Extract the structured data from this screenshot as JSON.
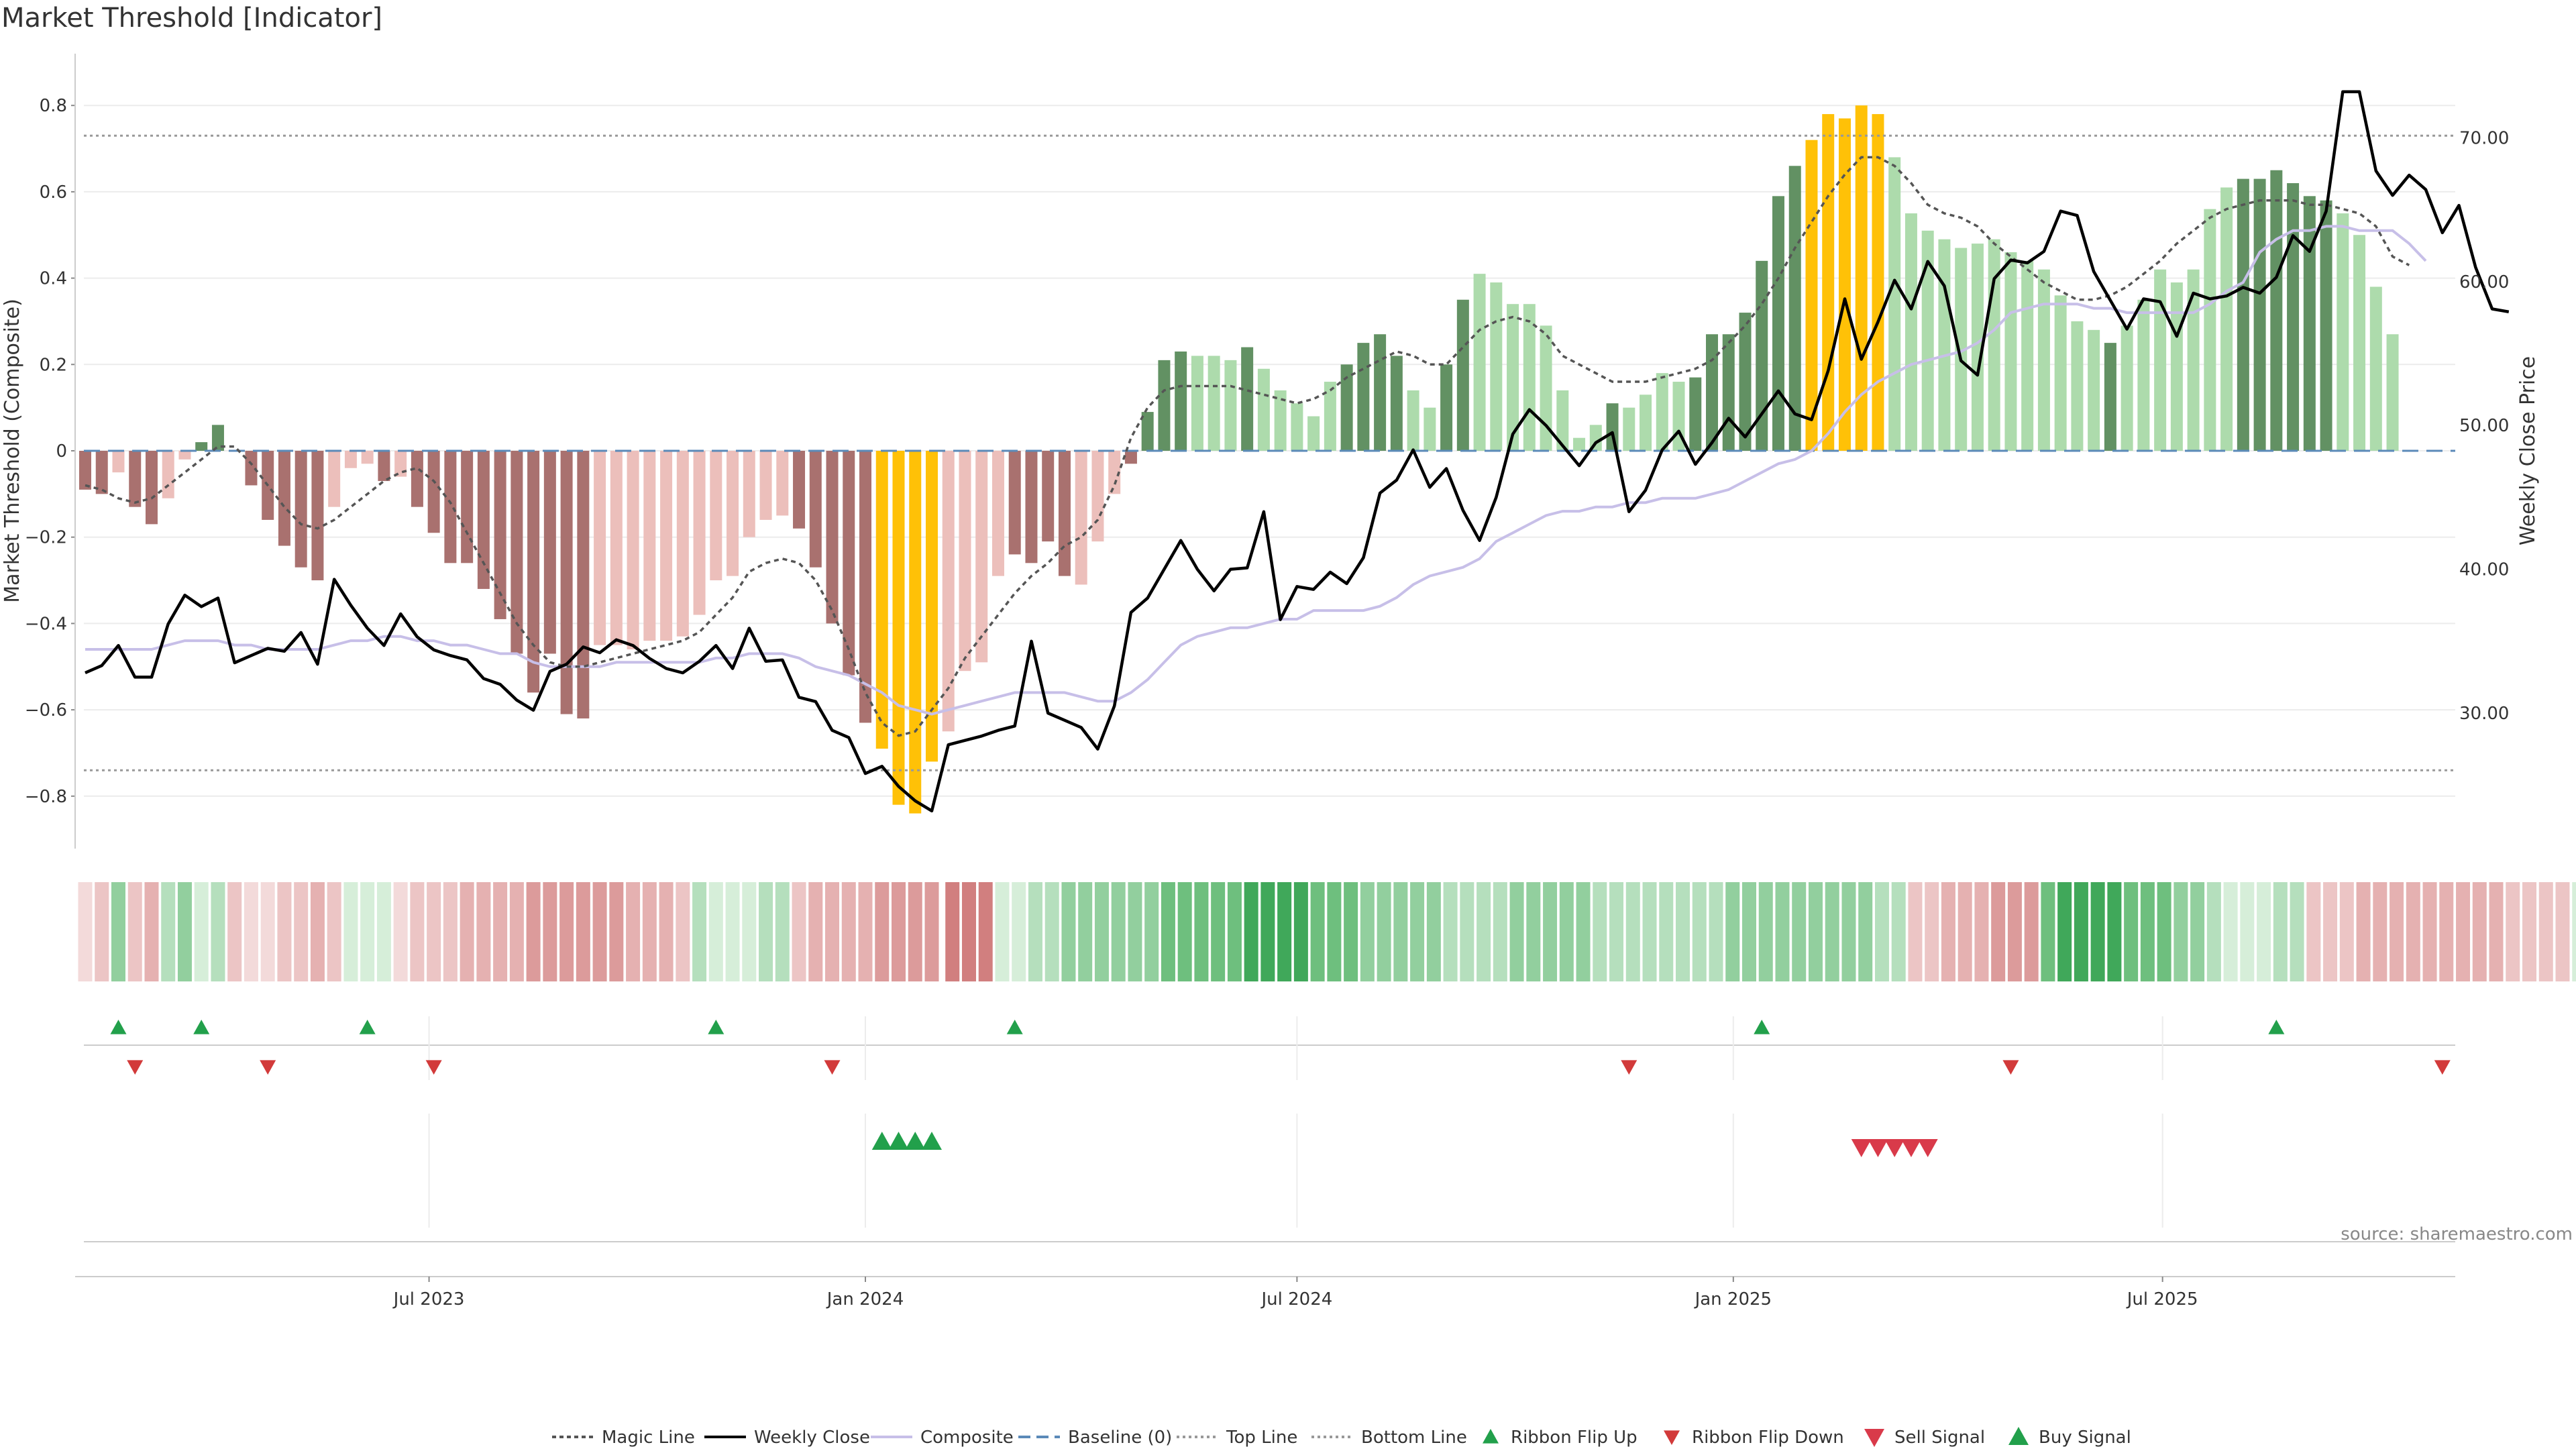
{
  "header": {
    "title": "Market Threshold [Indicator]"
  },
  "source": "source: sharemaestro.com",
  "colors": {
    "bear_dark": "#a9716f",
    "bear_light": "#ecbfbb",
    "bull_dark": "#629163",
    "bull_light": "#addbac",
    "extreme": "#ffc107",
    "close": "#000000",
    "composite": "#c7bfe8",
    "magic": "#555555",
    "baseline": "#5b8ab8",
    "ref": "#999999",
    "flip_up": "#22a04b",
    "flip_down": "#d23a3a"
  },
  "chart_data": {
    "type": "bar",
    "title": "Market Threshold [Indicator]",
    "ylabel": "Market Threshold (Composite)",
    "y2label": "Weekly Close Price",
    "ylim": [
      -0.92,
      0.92
    ],
    "y2lim": [
      21.6,
      74.2
    ],
    "yticks": [
      "0.8",
      "0.6",
      "0.4",
      "0.2",
      "0",
      "−0.2",
      "−0.4",
      "−0.6",
      "−0.8"
    ],
    "y2ticks": [
      "70.00",
      "60.00",
      "50.00",
      "40.00",
      "30.00"
    ],
    "xticks": [
      "Jul 2023",
      "Jan 2024",
      "Jul 2024",
      "Jan 2025",
      "Jul 2025"
    ],
    "xtick_dates": [
      "2023-07-01",
      "2024-01-01",
      "2024-07-01",
      "2025-01-01",
      "2025-07-01"
    ],
    "start_date": "2023-02-06",
    "top_line": 0.73,
    "bottom_line": -0.74,
    "composite_bars": [
      -0.09,
      -0.1,
      -0.05,
      -0.13,
      -0.17,
      -0.11,
      -0.02,
      0.02,
      0.06,
      0,
      -0.08,
      -0.16,
      -0.22,
      -0.27,
      -0.3,
      -0.13,
      -0.04,
      -0.03,
      -0.07,
      -0.06,
      -0.13,
      -0.19,
      -0.26,
      -0.26,
      -0.32,
      -0.39,
      -0.47,
      -0.56,
      -0.47,
      -0.61,
      -0.62,
      -0.45,
      -0.45,
      -0.46,
      -0.44,
      -0.44,
      -0.43,
      -0.38,
      -0.3,
      -0.29,
      -0.2,
      -0.16,
      -0.15,
      -0.18,
      -0.27,
      -0.4,
      -0.52,
      -0.63,
      -0.69,
      -0.82,
      -0.84,
      -0.72,
      -0.65,
      -0.51,
      -0.49,
      -0.29,
      -0.24,
      -0.26,
      -0.21,
      -0.29,
      -0.31,
      -0.21,
      -0.1,
      -0.03,
      0.09,
      0.21,
      0.23,
      0.22,
      0.22,
      0.21,
      0.24,
      0.19,
      0.14,
      0.11,
      0.08,
      0.16,
      0.2,
      0.25,
      0.27,
      0.22,
      0.14,
      0.1,
      0.2,
      0.35,
      0.41,
      0.39,
      0.34,
      0.34,
      0.29,
      0.14,
      0.03,
      0.06,
      0.11,
      0.1,
      0.13,
      0.18,
      0.16,
      0.17,
      0.27,
      0.27,
      0.32,
      0.44,
      0.59,
      0.66,
      0.72,
      0.78,
      0.77,
      0.8,
      0.78,
      0.68,
      0.55,
      0.51,
      0.49,
      0.47,
      0.48,
      0.49,
      0.46,
      0.44,
      0.42,
      0.36,
      0.3,
      0.28,
      0.25,
      0.29,
      0.35,
      0.42,
      0.39,
      0.42,
      0.56,
      0.61,
      0.63,
      0.63,
      0.65,
      0.62,
      0.59,
      0.58,
      0.55,
      0.5,
      0.38,
      0.27
    ],
    "bar_shade": "DDLDDLLDDLDDDDDLLLDLDDDDDDDDDDDLLLLLLLLLLLLDDDDDEEEELLLLDDDDLLLDDDDLLLDLLLLLDDDDLLDDLLLLLLLLDLLLLDDDDDDDEEEEELLLLLLLLLLLLLDLLLLLLLDDDDDDLLLLLLLLLL",
    "weekly_close": [
      32.8,
      33.3,
      34.7,
      32.5,
      32.5,
      36.2,
      38.2,
      37.4,
      38,
      33.5,
      34,
      34.5,
      34.3,
      35.6,
      33.4,
      39.3,
      37.5,
      35.9,
      34.7,
      36.9,
      35.3,
      34.4,
      34,
      33.7,
      32.4,
      32,
      30.9,
      30.2,
      32.9,
      33.4,
      34.6,
      34.2,
      35.1,
      34.7,
      33.8,
      33.1,
      32.8,
      33.6,
      34.7,
      33.1,
      35.9,
      33.6,
      33.7,
      31.1,
      30.8,
      28.8,
      28.3,
      25.8,
      26.3,
      24.9,
      23.9,
      23.2,
      27.8,
      28.1,
      28.4,
      28.8,
      29.1,
      35,
      30,
      29.5,
      29,
      27.5,
      30.5,
      37,
      38,
      40,
      42,
      40,
      38.5,
      40,
      40.1,
      44,
      36.5,
      38.8,
      38.6,
      39.8,
      39,
      40.8,
      45.3,
      46.2,
      48.3,
      45.7,
      47,
      44.1,
      42,
      45,
      49.4,
      51.1,
      50,
      48.6,
      47.2,
      48.8,
      49.5,
      44,
      45.5,
      48.3,
      49.6,
      47.3,
      48.8,
      50.5,
      49.2,
      50.8,
      52.4,
      50.8,
      50.4,
      53.8,
      58.8,
      54.6,
      57.2,
      60.1,
      58.1,
      61.4,
      59.7,
      54.5,
      53.5,
      60.2,
      61.5,
      61.3,
      62.1,
      64.9,
      64.6,
      60.7,
      58.7,
      56.7,
      58.8,
      58.6,
      56.2,
      59.2,
      58.8,
      59,
      59.6,
      59.2,
      60.3,
      63.2,
      62.1,
      64.9,
      73.2,
      73.2,
      67.7,
      66,
      67.4,
      66.4,
      63.4,
      65.3,
      61,
      58.1,
      57.9
    ],
    "composite_line": [
      -0.46,
      -0.46,
      -0.46,
      -0.46,
      -0.46,
      -0.45,
      -0.44,
      -0.44,
      -0.44,
      -0.45,
      -0.45,
      -0.46,
      -0.46,
      -0.46,
      -0.46,
      -0.45,
      -0.44,
      -0.44,
      -0.43,
      -0.43,
      -0.44,
      -0.44,
      -0.45,
      -0.45,
      -0.46,
      -0.47,
      -0.47,
      -0.49,
      -0.5,
      -0.5,
      -0.5,
      -0.5,
      -0.49,
      -0.49,
      -0.49,
      -0.49,
      -0.49,
      -0.49,
      -0.48,
      -0.48,
      -0.47,
      -0.47,
      -0.47,
      -0.48,
      -0.5,
      -0.51,
      -0.52,
      -0.54,
      -0.56,
      -0.59,
      -0.6,
      -0.61,
      -0.6,
      -0.59,
      -0.58,
      -0.57,
      -0.56,
      -0.56,
      -0.56,
      -0.56,
      -0.57,
      -0.58,
      -0.58,
      -0.56,
      -0.53,
      -0.49,
      -0.45,
      -0.43,
      -0.42,
      -0.41,
      -0.41,
      -0.4,
      -0.39,
      -0.39,
      -0.37,
      -0.37,
      -0.37,
      -0.37,
      -0.36,
      -0.34,
      -0.31,
      -0.29,
      -0.28,
      -0.27,
      -0.25,
      -0.21,
      -0.19,
      -0.17,
      -0.15,
      -0.14,
      -0.14,
      -0.13,
      -0.13,
      -0.12,
      -0.12,
      -0.11,
      -0.11,
      -0.11,
      -0.1,
      -0.09,
      -0.07,
      -0.05,
      -0.03,
      -0.02,
      0,
      0.04,
      0.09,
      0.13,
      0.16,
      0.18,
      0.2,
      0.21,
      0.22,
      0.23,
      0.25,
      0.28,
      0.32,
      0.33,
      0.34,
      0.34,
      0.34,
      0.33,
      0.33,
      0.32,
      0.32,
      0.32,
      0.32,
      0.32,
      0.34,
      0.37,
      0.39,
      0.46,
      0.49,
      0.51,
      0.51,
      0.52,
      0.52,
      0.51,
      0.51,
      0.51,
      0.48,
      0.44
    ],
    "magic_line": [
      -0.08,
      -0.09,
      -0.11,
      -0.12,
      -0.11,
      -0.08,
      -0.05,
      -0.02,
      0.01,
      0.01,
      -0.03,
      -0.08,
      -0.13,
      -0.17,
      -0.18,
      -0.16,
      -0.13,
      -0.1,
      -0.07,
      -0.05,
      -0.04,
      -0.07,
      -0.12,
      -0.19,
      -0.26,
      -0.33,
      -0.4,
      -0.45,
      -0.49,
      -0.5,
      -0.5,
      -0.49,
      -0.48,
      -0.47,
      -0.46,
      -0.45,
      -0.44,
      -0.42,
      -0.38,
      -0.34,
      -0.28,
      -0.26,
      -0.25,
      -0.26,
      -0.3,
      -0.37,
      -0.46,
      -0.56,
      -0.63,
      -0.66,
      -0.65,
      -0.6,
      -0.55,
      -0.48,
      -0.43,
      -0.38,
      -0.33,
      -0.29,
      -0.26,
      -0.22,
      -0.2,
      -0.16,
      -0.08,
      0.03,
      0.1,
      0.14,
      0.15,
      0.15,
      0.15,
      0.15,
      0.14,
      0.13,
      0.12,
      0.11,
      0.12,
      0.14,
      0.17,
      0.19,
      0.21,
      0.23,
      0.22,
      0.2,
      0.2,
      0.24,
      0.28,
      0.3,
      0.31,
      0.3,
      0.27,
      0.22,
      0.2,
      0.18,
      0.16,
      0.16,
      0.16,
      0.17,
      0.18,
      0.19,
      0.21,
      0.25,
      0.29,
      0.34,
      0.4,
      0.47,
      0.53,
      0.59,
      0.64,
      0.68,
      0.68,
      0.66,
      0.62,
      0.57,
      0.55,
      0.54,
      0.52,
      0.48,
      0.45,
      0.42,
      0.39,
      0.37,
      0.35,
      0.35,
      0.36,
      0.38,
      0.41,
      0.44,
      0.48,
      0.51,
      0.54,
      0.56,
      0.57,
      0.58,
      0.58,
      0.58,
      0.57,
      0.57,
      0.56,
      0.55,
      0.52,
      0.45,
      0.43
    ],
    "ribbon_levels": [
      1,
      2,
      3,
      2,
      3,
      2,
      3,
      1,
      2,
      2,
      1,
      1,
      2,
      2,
      3,
      2,
      1,
      1,
      1,
      1,
      2,
      2,
      2,
      3,
      3,
      3,
      3,
      4,
      4,
      4,
      4,
      4,
      4,
      3,
      3,
      3,
      2,
      2,
      1,
      1,
      1,
      2,
      2,
      2,
      3,
      3,
      3,
      3,
      4,
      4,
      4,
      4,
      5,
      5,
      5,
      1,
      1,
      2,
      2,
      3,
      3,
      3,
      3,
      3,
      3,
      4,
      4,
      4,
      4,
      4,
      5,
      5,
      5,
      5,
      4,
      4,
      4,
      3,
      3,
      3,
      3,
      3,
      2,
      2,
      2,
      2,
      3,
      3,
      3,
      3,
      3,
      2,
      2,
      2,
      2,
      2,
      2,
      2,
      2,
      3,
      3,
      3,
      3,
      3,
      3,
      3,
      3,
      3,
      2,
      2,
      2,
      2,
      3,
      3,
      3,
      4,
      4,
      4,
      4,
      5,
      5,
      5,
      5,
      4,
      4,
      4,
      3,
      3,
      2,
      1,
      1,
      1,
      2,
      2,
      2,
      2,
      2,
      3,
      3,
      3,
      3,
      3,
      3,
      3,
      3,
      3,
      2,
      2,
      2,
      2,
      1
    ],
    "ribbon_signs": "BBGBBGGGGBBBBBBBGGGBBBBBBBBBBBBBBBBBBGGGGGGBBBBBBBBBBBBGGGGGGGGGGGGGGGGGGGGGGGGGGGGGGGGGGGGGGGGGGGGGGGGGGGGGGGBBBBBBBBGGGGGGGGGGGGGGGGBBBBBBBBBBBBBBBBGGGGGGGGGGGB",
    "ribbon_gap_index": 52,
    "flip_up_weeks": [
      2,
      7,
      17,
      38,
      56,
      101,
      132
    ],
    "flip_down_weeks": [
      3,
      11,
      21,
      45,
      93,
      116,
      142
    ],
    "buy_signal_weeks": [
      48,
      49,
      50,
      51
    ],
    "sell_signal_weeks": [
      107,
      108,
      109,
      110,
      111
    ]
  },
  "legend": [
    {
      "label": "Magic Line",
      "kind": "line-dotted-dark"
    },
    {
      "label": "Weekly Close",
      "kind": "line-black"
    },
    {
      "label": "Composite",
      "kind": "line-lavender"
    },
    {
      "label": "Baseline (0)",
      "kind": "line-dashed-blue"
    },
    {
      "label": "Top Line",
      "kind": "line-dotted-gray"
    },
    {
      "label": "Bottom Line",
      "kind": "line-dotted-gray"
    },
    {
      "label": "Ribbon Flip Up",
      "kind": "tri-up-green"
    },
    {
      "label": "Ribbon Flip Down",
      "kind": "tri-down-red"
    },
    {
      "label": "Sell Signal",
      "kind": "tri-down-large-red"
    },
    {
      "label": "Buy Signal",
      "kind": "tri-up-large-green"
    }
  ]
}
